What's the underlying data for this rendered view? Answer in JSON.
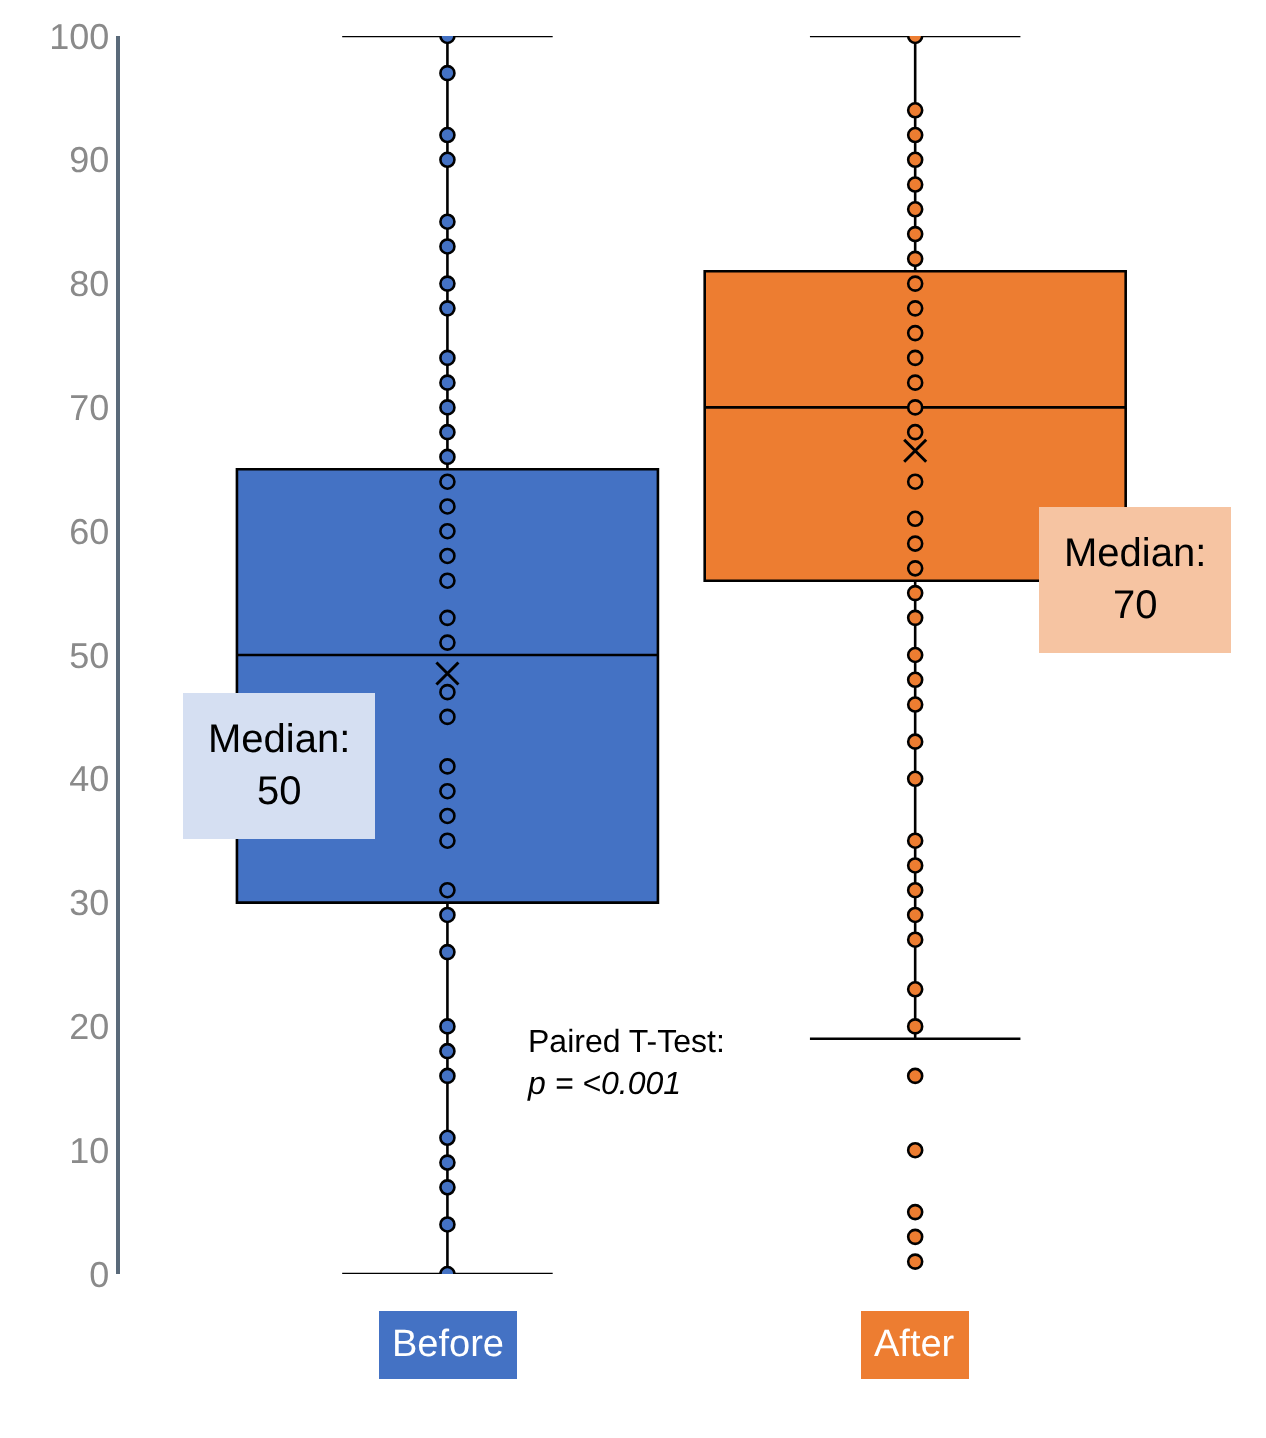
{
  "chart_data": {
    "type": "box",
    "categories": [
      "Before",
      "After"
    ],
    "colors": [
      "#4472c4",
      "#ed7d31"
    ],
    "boxes": [
      {
        "low": 0,
        "q1": 30,
        "median": 50,
        "q3": 65,
        "high": 100,
        "mean": 48.5
      },
      {
        "low": 19,
        "q1": 56,
        "median": 70,
        "q3": 81,
        "high": 100,
        "mean": 66.5
      }
    ],
    "series": [
      {
        "type": "scatter",
        "color": "#4472c4",
        "x": [
          "Before",
          "Before",
          "Before",
          "Before",
          "Before",
          "Before",
          "Before",
          "Before",
          "Before",
          "Before",
          "Before",
          "Before",
          "Before",
          "Before",
          "Before",
          "Before",
          "Before",
          "Before",
          "Before",
          "Before",
          "Before",
          "Before",
          "Before",
          "Before",
          "Before",
          "Before",
          "Before",
          "Before",
          "Before",
          "Before",
          "Before",
          "Before",
          "Before",
          "Before",
          "Before",
          "Before",
          "Before"
        ],
        "values": [
          100,
          97,
          92,
          90,
          85,
          83,
          80,
          78,
          74,
          72,
          70,
          68,
          66,
          64,
          62,
          60,
          58,
          56,
          53,
          51,
          47,
          45,
          41,
          39,
          37,
          35,
          31,
          29,
          26,
          20,
          18,
          16,
          11,
          9,
          7,
          4,
          0
        ]
      },
      {
        "type": "scatter",
        "color": "#ed7d31",
        "x": [
          "After",
          "After",
          "After",
          "After",
          "After",
          "After",
          "After",
          "After",
          "After",
          "After",
          "After",
          "After",
          "After",
          "After",
          "After",
          "After",
          "After",
          "After",
          "After",
          "After",
          "After",
          "After",
          "After",
          "After",
          "After",
          "After",
          "After",
          "After",
          "After",
          "After",
          "After",
          "After",
          "After",
          "After",
          "After",
          "After",
          "After",
          "After"
        ],
        "values": [
          100,
          94,
          92,
          90,
          88,
          86,
          84,
          82,
          80,
          78,
          76,
          74,
          72,
          70,
          68,
          64,
          61,
          59,
          57,
          55,
          53,
          50,
          48,
          46,
          43,
          40,
          35,
          33,
          31,
          29,
          27,
          23,
          20,
          16,
          10,
          5,
          3,
          1
        ]
      }
    ],
    "marker": "circle",
    "ylim": [
      0,
      100
    ],
    "yticks": [
      0,
      10,
      20,
      30,
      40,
      50,
      60,
      70,
      80,
      90,
      100
    ],
    "annotations": [
      "Median:\n50",
      "Median:\n70",
      "Paired T-Test:\np = <0.001"
    ]
  }
}
